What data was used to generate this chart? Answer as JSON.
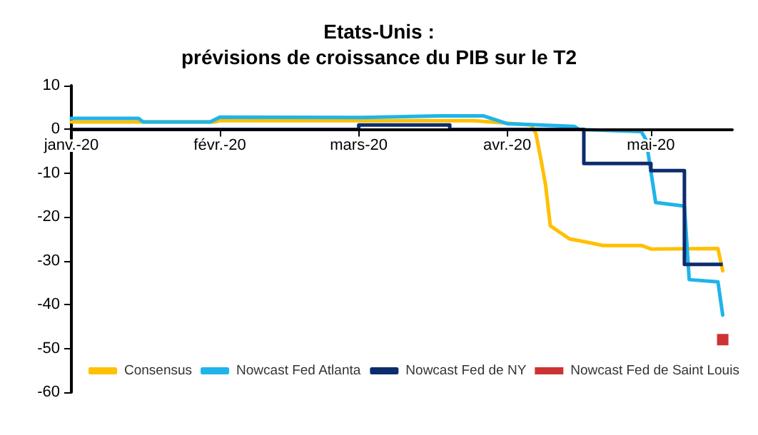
{
  "chart_data": {
    "type": "line",
    "title": "Etats-Unis :",
    "subtitle": "prévisions de croissance du PIB sur le T2",
    "xlim": [
      "2020-01-01",
      "2020-05-18"
    ],
    "ylim": [
      -60,
      10
    ],
    "yticks": [
      -60,
      -50,
      -40,
      -30,
      -20,
      -10,
      0,
      10
    ],
    "xticks": [
      {
        "value": "2020-01-01",
        "label": "janv.-20"
      },
      {
        "value": "2020-02-01",
        "label": "févr.-20"
      },
      {
        "value": "2020-03-01",
        "label": "mars-20"
      },
      {
        "value": "2020-04-01",
        "label": "avr.-20"
      },
      {
        "value": "2020-05-01",
        "label": "mai-20"
      }
    ],
    "grid": false,
    "legend": "bottom",
    "marker": "none",
    "series": [
      {
        "name": "Consensus",
        "color": "#ffc000",
        "x": [
          "2020-01-01",
          "2020-01-31",
          "2020-02-01",
          "2020-03-25",
          "2020-04-06",
          "2020-04-07",
          "2020-04-08",
          "2020-04-09",
          "2020-04-10",
          "2020-04-14",
          "2020-04-17",
          "2020-04-21",
          "2020-04-29",
          "2020-05-01",
          "2020-05-15",
          "2020-05-16"
        ],
        "values": [
          1.7,
          1.7,
          2,
          2,
          1,
          -1,
          -6.6,
          -12.6,
          -22,
          -25,
          -25.6,
          -26.5,
          -26.5,
          -27.3,
          -27.2,
          -32.3
        ]
      },
      {
        "name": "Nowcast Fed Atlanta",
        "color": "#1fb4ea",
        "x": [
          "2020-01-01",
          "2020-01-15",
          "2020-01-16",
          "2020-01-30",
          "2020-02-01",
          "2020-03-01",
          "2020-03-18",
          "2020-03-27",
          "2020-04-01",
          "2020-04-15",
          "2020-04-16",
          "2020-04-29",
          "2020-04-30",
          "2020-05-02",
          "2020-05-08",
          "2020-05-09",
          "2020-05-15",
          "2020-05-16"
        ],
        "values": [
          2.5,
          2.5,
          1.7,
          1.7,
          2.8,
          2.7,
          3.1,
          3.1,
          1.3,
          0.7,
          0,
          -0.5,
          -2.4,
          -16.7,
          -17.5,
          -34.3,
          -34.8,
          -42.4
        ]
      },
      {
        "name": "Nowcast Fed de NY",
        "type": "step",
        "color": "#0d2c6c",
        "x": [
          "2020-01-01",
          "2020-03-01",
          "2020-03-20",
          "2020-04-17",
          "2020-05-01",
          "2020-05-08",
          "2020-05-16"
        ],
        "values": [
          0,
          1,
          0,
          -7.8,
          -9.4,
          -30.8,
          -30.8
        ]
      },
      {
        "name": "Nowcast Fed de Saint Louis",
        "type": "scatter",
        "marker": "square",
        "color": "#c00000",
        "x": [
          "2020-05-16"
        ],
        "values": [
          -48
        ]
      }
    ]
  }
}
